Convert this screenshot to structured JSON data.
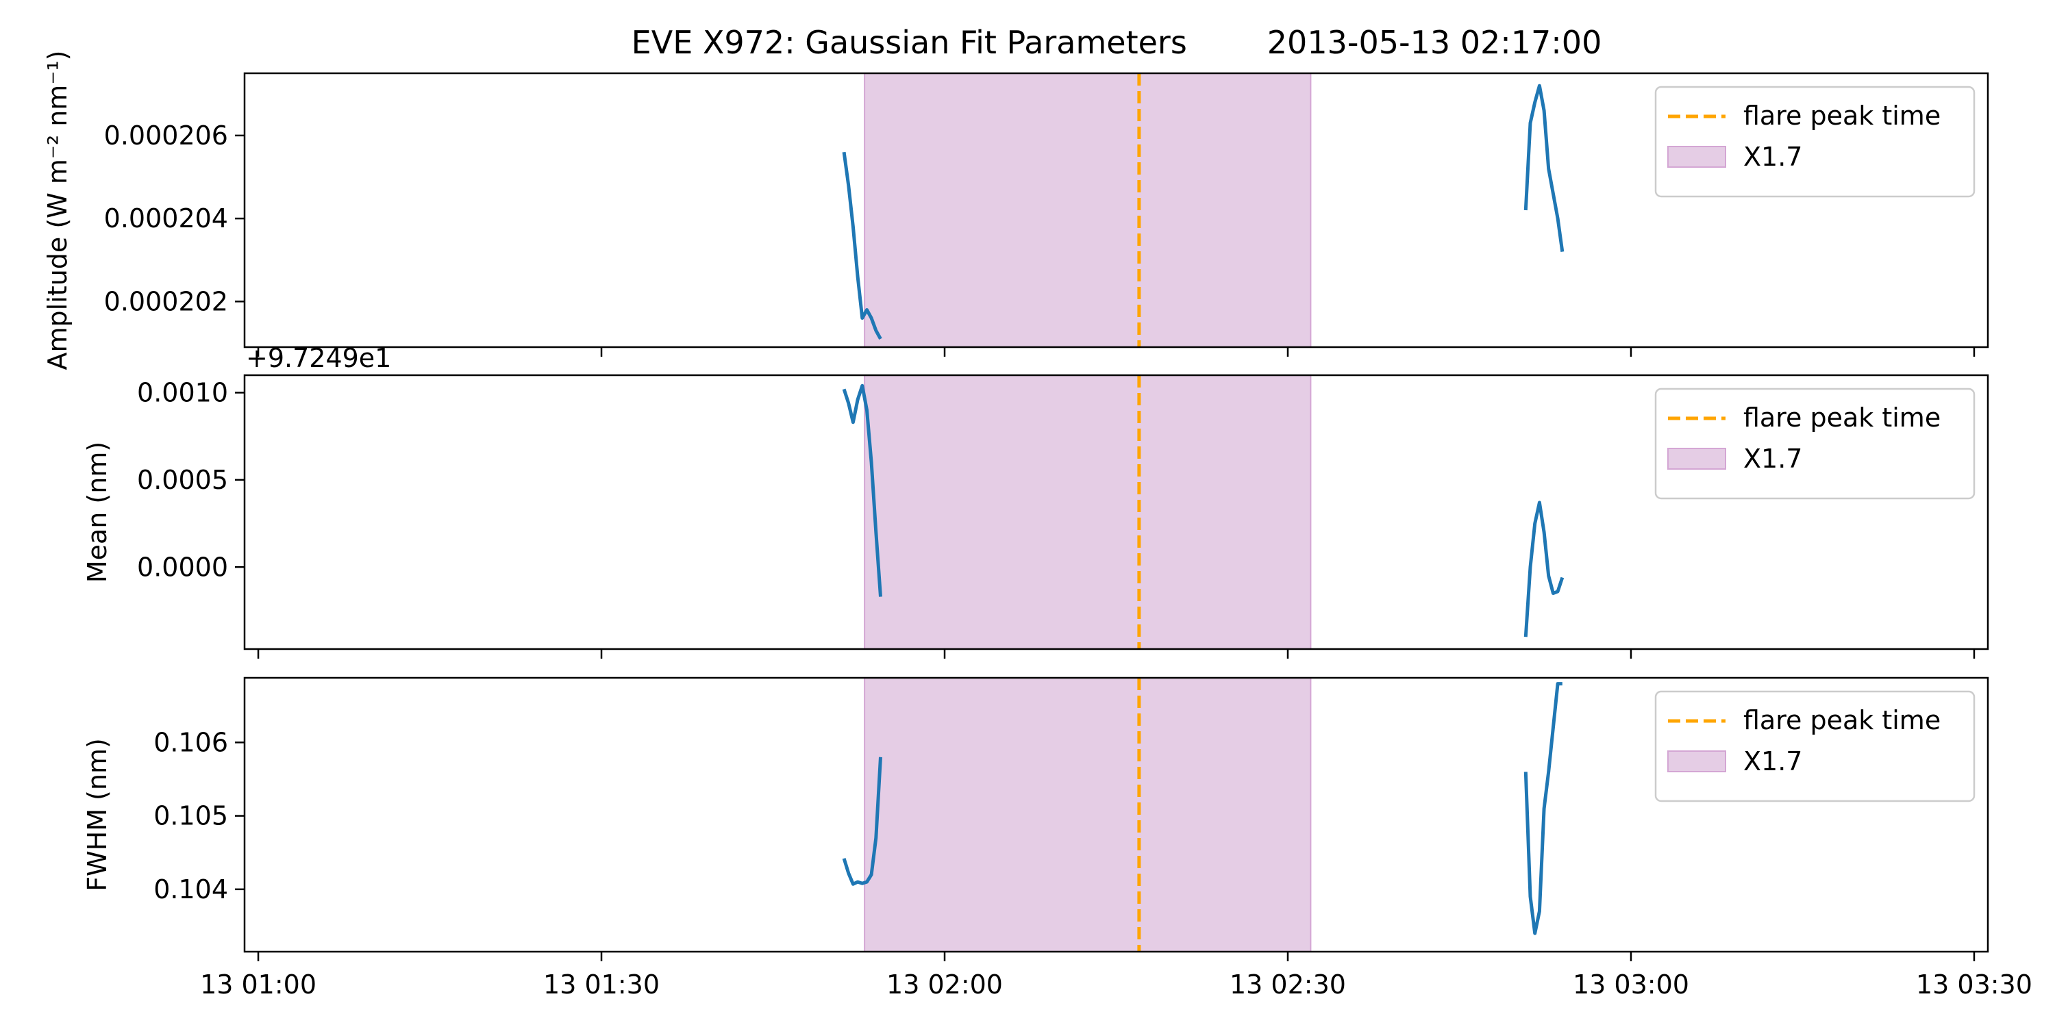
{
  "figure": {
    "title": "EVE X972: Gaussian Fit Parameters        2013-05-13 02:17:00"
  },
  "colors": {
    "series": "#1f77b4",
    "flare_line": "#ffa500",
    "flare_span_fill": "#e5cde5",
    "flare_span_edge": "#d4a6d4",
    "axes": "#000000"
  },
  "chart_data": [
    {
      "type": "line",
      "panel": "amplitude",
      "ylabel": "Amplitude (W m⁻² nm⁻¹)",
      "offset_label": "",
      "xlim": [
        "2013-05-13 00:58:48",
        "2013-05-13 03:31:12"
      ],
      "ylim": [
        0.0002009,
        0.0002075
      ],
      "yticks": [
        0.000202,
        0.000204,
        0.000206
      ],
      "ytick_labels": [
        "0.000202",
        "0.000204",
        "0.000206"
      ],
      "xticks": [
        "2013-05-13 01:00",
        "2013-05-13 01:30",
        "2013-05-13 02:00",
        "2013-05-13 02:30",
        "2013-05-13 03:00",
        "2013-05-13 03:30"
      ],
      "xtick_labels": [],
      "flare_peak_time": "2013-05-13 02:17:00",
      "flare_span": [
        "2013-05-13 01:53:00",
        "2013-05-13 02:32:00"
      ],
      "legend": {
        "position": "top-right",
        "items": [
          "flare peak time",
          "X1.7"
        ]
      },
      "series": [
        {
          "segments": [
            {
              "x": [
                "01:51:12",
                "01:51:36",
                "01:52:00",
                "01:52:24",
                "01:52:48",
                "01:53:12",
                "01:53:36",
                "01:54:00",
                "01:54:24"
              ],
              "y": [
                0.0002056,
                0.0002048,
                0.0002038,
                0.0002026,
                0.0002016,
                0.0002018,
                0.0002016,
                0.0002013,
                0.0002011
              ]
            },
            {
              "x": [
                "02:50:48",
                "02:51:12",
                "02:51:36",
                "02:52:00",
                "02:52:24",
                "02:52:48",
                "02:53:12",
                "02:53:36",
                "02:54:00"
              ],
              "y": [
                0.0002042,
                0.0002063,
                0.0002068,
                0.0002072,
                0.0002066,
                0.0002052,
                0.0002046,
                0.000204,
                0.0002032
              ]
            }
          ]
        }
      ]
    },
    {
      "type": "line",
      "panel": "mean",
      "ylabel": "Mean (nm)",
      "offset_label": "+9.7249e1",
      "xlim": [
        "2013-05-13 00:58:48",
        "2013-05-13 03:31:12"
      ],
      "ylim": [
        -0.00047,
        0.0011
      ],
      "yticks": [
        0.0,
        0.0005,
        0.001
      ],
      "ytick_labels": [
        "0.0000",
        "0.0005",
        "0.0010"
      ],
      "xticks": [
        "2013-05-13 01:00",
        "2013-05-13 01:30",
        "2013-05-13 02:00",
        "2013-05-13 02:30",
        "2013-05-13 03:00",
        "2013-05-13 03:30"
      ],
      "xtick_labels": [],
      "flare_peak_time": "2013-05-13 02:17:00",
      "flare_span": [
        "2013-05-13 01:53:00",
        "2013-05-13 02:32:00"
      ],
      "legend": {
        "position": "top-right",
        "items": [
          "flare peak time",
          "X1.7"
        ]
      },
      "series": [
        {
          "segments": [
            {
              "x": [
                "01:51:12",
                "01:51:36",
                "01:52:00",
                "01:52:24",
                "01:52:48",
                "01:53:12",
                "01:53:36",
                "01:54:00",
                "01:54:24"
              ],
              "y": [
                0.00102,
                0.00094,
                0.00083,
                0.00096,
                0.00104,
                0.0009,
                0.0006,
                0.0002,
                -0.00017
              ]
            },
            {
              "x": [
                "02:50:48",
                "02:51:12",
                "02:51:36",
                "02:52:00",
                "02:52:24",
                "02:52:48",
                "02:53:12",
                "02:53:36",
                "02:54:00"
              ],
              "y": [
                -0.0004,
                0.0,
                0.00025,
                0.00037,
                0.0002,
                -5e-05,
                -0.00015,
                -0.00014,
                -6e-05
              ]
            }
          ]
        }
      ]
    },
    {
      "type": "line",
      "panel": "fwhm",
      "ylabel": "FWHM (nm)",
      "offset_label": "",
      "xlim": [
        "2013-05-13 00:58:48",
        "2013-05-13 03:31:12"
      ],
      "ylim": [
        0.10315,
        0.10688
      ],
      "yticks": [
        0.104,
        0.105,
        0.106
      ],
      "ytick_labels": [
        "0.104",
        "0.105",
        "0.106"
      ],
      "xticks": [
        "2013-05-13 01:00",
        "2013-05-13 01:30",
        "2013-05-13 02:00",
        "2013-05-13 02:30",
        "2013-05-13 03:00",
        "2013-05-13 03:30"
      ],
      "xtick_labels": [
        "13 01:00",
        "13 01:30",
        "13 02:00",
        "13 02:30",
        "13 03:00",
        "13 03:30"
      ],
      "flare_peak_time": "2013-05-13 02:17:00",
      "flare_span": [
        "2013-05-13 01:53:00",
        "2013-05-13 02:32:00"
      ],
      "legend": {
        "position": "top-right",
        "items": [
          "flare peak time",
          "X1.7"
        ]
      },
      "series": [
        {
          "segments": [
            {
              "x": [
                "01:51:12",
                "01:51:36",
                "01:52:00",
                "01:52:24",
                "01:52:48",
                "01:53:12",
                "01:53:36",
                "01:54:00",
                "01:54:24"
              ],
              "y": [
                0.10442,
                0.10422,
                0.10407,
                0.1041,
                0.10408,
                0.1041,
                0.1042,
                0.1047,
                0.1058
              ]
            },
            {
              "x": [
                "02:50:48",
                "02:51:12",
                "02:51:36",
                "02:52:00",
                "02:52:24",
                "02:52:48",
                "02:53:12",
                "02:53:36",
                "02:54:00"
              ],
              "y": [
                0.1056,
                0.1039,
                0.1034,
                0.1037,
                0.1051,
                0.1056,
                0.1062,
                0.1068,
                0.1068
              ]
            }
          ]
        }
      ]
    }
  ]
}
